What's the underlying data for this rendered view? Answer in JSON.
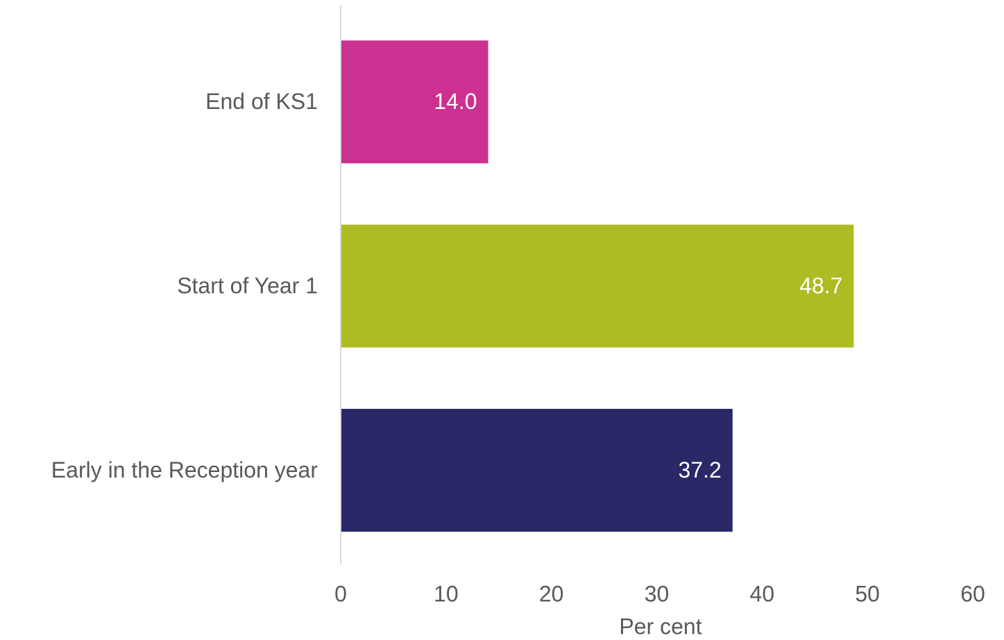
{
  "chart_data": {
    "type": "bar",
    "orientation": "horizontal",
    "categories": [
      "End of KS1",
      "Start of Year 1",
      "Early in the Reception year"
    ],
    "values": [
      14.0,
      48.7,
      37.2
    ],
    "value_labels": [
      "14.0",
      "48.7",
      "37.2"
    ],
    "colors": [
      "#cc3191",
      "#adbc23",
      "#282966"
    ],
    "xlabel": "Per cent",
    "xlim": [
      0,
      60
    ],
    "xticks": [
      0,
      10,
      20,
      30,
      40,
      50,
      60
    ],
    "grid": false
  }
}
